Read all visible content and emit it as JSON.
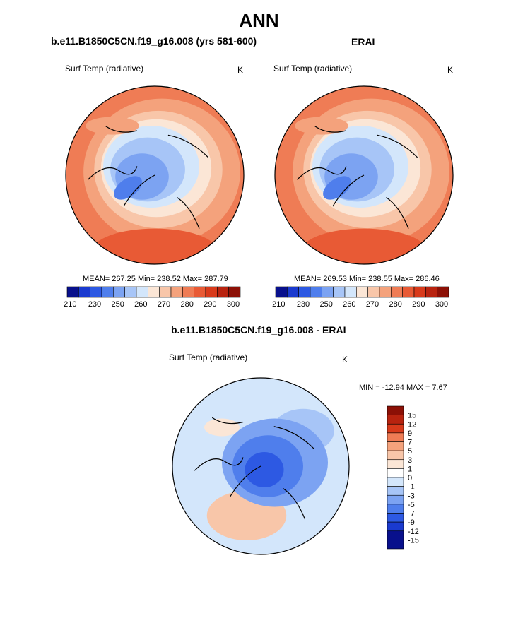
{
  "page": {
    "title": "ANN"
  },
  "panels": [
    {
      "title": "b.e11.B1850C5CN.f19_g16.008 (yrs 581-600)",
      "left_label": "Surf Temp (radiative)",
      "right_label": "K",
      "stats": "MEAN= 267.25  Min= 238.52  Max= 287.79"
    },
    {
      "title": "ERAI",
      "left_label": "Surf Temp (radiative)",
      "right_label": "K",
      "stats": "MEAN= 269.53  Min= 238.55  Max= 286.46"
    },
    {
      "title": "b.e11.B1850C5CN.f19_g16.008 - ERAI",
      "left_label": "Surf Temp (radiative)",
      "right_label": "K",
      "stats": "MIN = -12.94 MAX =   7.67"
    }
  ],
  "chart_data": [
    {
      "type": "heatmap",
      "title": "b.e11.B1850C5CN.f19_g16.008 (yrs 581-600)",
      "variable": "Surf Temp (radiative)",
      "units": "K",
      "projection": "polar stereographic (north pole)",
      "mean": 267.25,
      "min": 238.52,
      "max": 287.79,
      "colorbar": {
        "levels": [
          210,
          230,
          250,
          260,
          270,
          280,
          290,
          300
        ],
        "colors": [
          "#08108c",
          "#1a3acf",
          "#2d59e3",
          "#4f7eec",
          "#7ca3f2",
          "#a7c5f7",
          "#d3e6fb",
          "#fbe6d6",
          "#f8c6a9",
          "#f4a27c",
          "#ef7c55",
          "#e85a35",
          "#d83a1b",
          "#b8230f",
          "#8c1006"
        ]
      }
    },
    {
      "type": "heatmap",
      "title": "ERAI",
      "variable": "Surf Temp (radiative)",
      "units": "K",
      "projection": "polar stereographic (north pole)",
      "mean": 269.53,
      "min": 238.55,
      "max": 286.46,
      "colorbar": {
        "levels": [
          210,
          230,
          250,
          260,
          270,
          280,
          290,
          300
        ],
        "colors": [
          "#08108c",
          "#1a3acf",
          "#2d59e3",
          "#4f7eec",
          "#7ca3f2",
          "#a7c5f7",
          "#d3e6fb",
          "#fbe6d6",
          "#f8c6a9",
          "#f4a27c",
          "#ef7c55",
          "#e85a35",
          "#d83a1b",
          "#b8230f",
          "#8c1006"
        ]
      }
    },
    {
      "type": "heatmap",
      "title": "b.e11.B1850C5CN.f19_g16.008 - ERAI",
      "variable": "Surf Temp (radiative)",
      "units": "K",
      "projection": "polar stereographic (north pole)",
      "min": -12.94,
      "max": 7.67,
      "colorbar": {
        "orientation": "vertical",
        "levels": [
          15,
          12,
          9,
          7,
          5,
          3,
          1,
          0,
          -1,
          -3,
          -5,
          -7,
          -9,
          -12,
          -15
        ],
        "colors": [
          "#8c1006",
          "#b8230f",
          "#d83a1b",
          "#ef7c55",
          "#f4a27c",
          "#f8c6a9",
          "#fbe6d6",
          "#ffffff",
          "#d3e6fb",
          "#a7c5f7",
          "#7ca3f2",
          "#4f7eec",
          "#2d59e3",
          "#1a3acf",
          "#08108c",
          "#08108c"
        ]
      }
    }
  ]
}
